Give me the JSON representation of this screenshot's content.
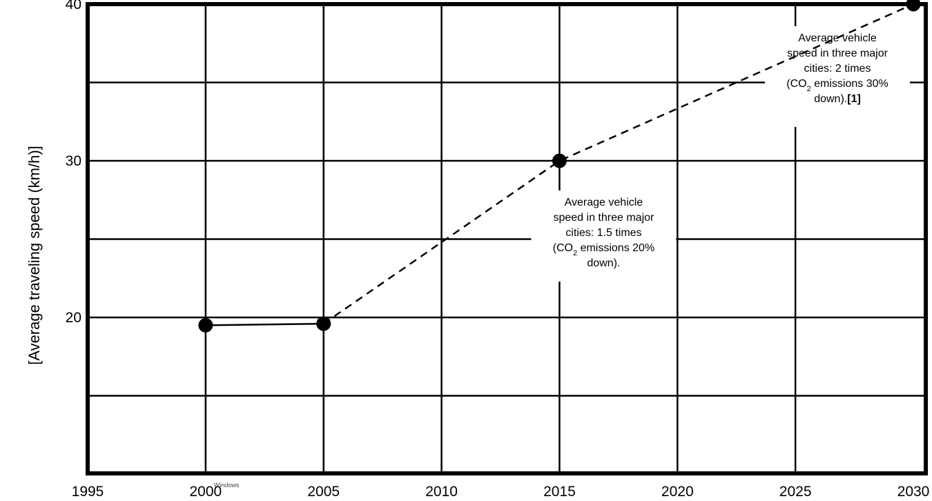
{
  "chart_data": {
    "type": "line",
    "title": "",
    "xlabel": "",
    "ylabel": "[Average traveling speed (km/h)]",
    "xlim": [
      1995,
      2030
    ],
    "ylim": [
      10,
      40
    ],
    "x_ticks": [
      1995,
      2000,
      2005,
      2010,
      2015,
      2020,
      2025,
      2030
    ],
    "y_ticks": [
      20,
      30,
      40
    ],
    "grid": true,
    "series": [
      {
        "style": "solid",
        "points": [
          {
            "x": 2000,
            "y": 19.5
          },
          {
            "x": 2005,
            "y": 19.6
          }
        ]
      },
      {
        "style": "dashed",
        "points": [
          {
            "x": 2005,
            "y": 19.6
          },
          {
            "x": 2015,
            "y": 30
          },
          {
            "x": 2030,
            "y": 40
          }
        ]
      }
    ],
    "annotations": [
      {
        "anchor_x": 2015,
        "lines": [
          "Average vehicle",
          "speed in three major",
          "cities: 1.5 times"
        ],
        "co2_line": {
          "pre": "(CO",
          "sub": "2",
          "post": " emissions 20%"
        },
        "last_line": "down).",
        "last_bold": ""
      },
      {
        "anchor_x": 2030,
        "lines": [
          "Average vehicle",
          "speed in three major",
          "cities: 2 times"
        ],
        "co2_line": {
          "pre": "(CO",
          "sub": "2",
          "post": " emissions 30%"
        },
        "last_line": "down).",
        "last_bold": "[1]"
      }
    ],
    "overlap_text": "Windows"
  }
}
